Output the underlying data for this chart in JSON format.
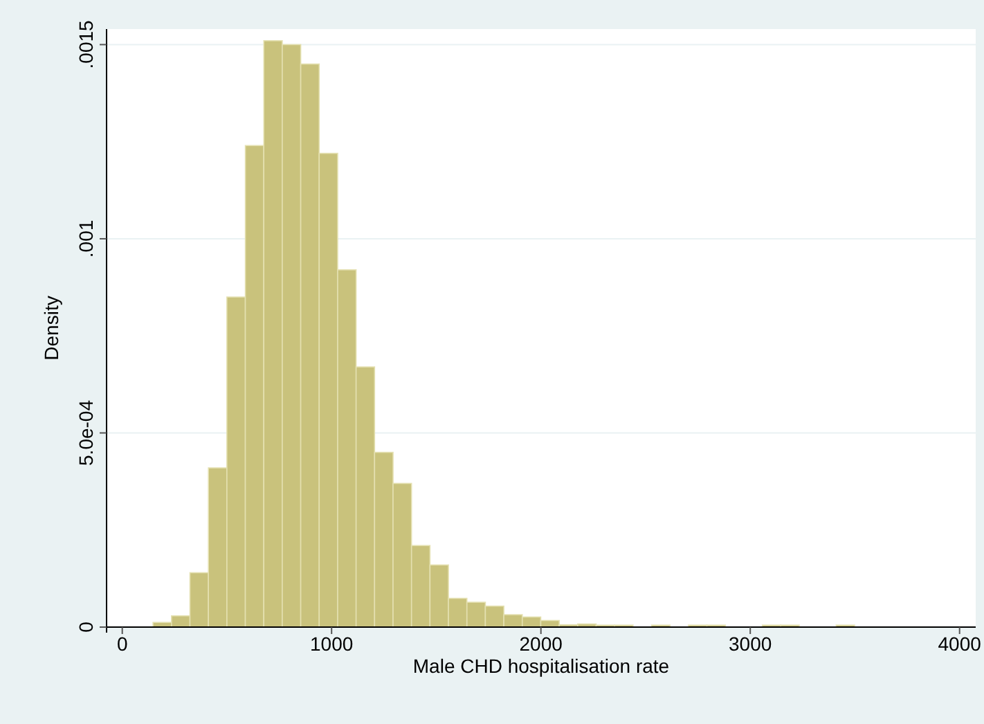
{
  "chart_data": {
    "type": "histogram",
    "xlabel": "Male CHD hospitalisation rate",
    "ylabel": "Density",
    "bins": [
      147,
      235.2,
      323.4,
      411.6,
      499.8,
      588,
      676.2,
      764.4,
      852.6,
      940.8,
      1029,
      1117.2,
      1205.4,
      1293.6,
      1381.8,
      1470,
      1558.2,
      1646.4,
      1734.6,
      1822.8,
      1911,
      1999.2,
      2087.4,
      2175.6,
      2263.8,
      2352,
      2440.2,
      2528.4,
      2616.6,
      2704.8,
      2793,
      2881.2,
      2969.4,
      3057.6,
      3145.8,
      3234,
      3322.2,
      3410.4,
      3498.6
    ],
    "values": [
      1.2e-05,
      2.9e-05,
      0.00014,
      0.00041,
      0.00085,
      0.00124,
      0.00151,
      0.0015,
      0.00145,
      0.00122,
      0.00092,
      0.00067,
      0.00045,
      0.00037,
      0.00021,
      0.00016,
      7.4e-05,
      6.4e-05,
      5.4e-05,
      3.2e-05,
      2.6e-05,
      1.7e-05,
      6e-06,
      8e-06,
      5e-06,
      5e-06,
      0,
      5e-06,
      0,
      5e-06,
      5e-06,
      0,
      0,
      5e-06,
      5e-06,
      0,
      0,
      5e-06
    ],
    "color": "#c9c27c",
    "xlim": [
      -75,
      4077
    ],
    "xticks": [
      0,
      1000,
      2000,
      3000,
      4000
    ],
    "ylim": [
      0,
      0.00154
    ],
    "yticks": [
      {
        "value": 0,
        "label": "0"
      },
      {
        "value": 0.0005,
        "label": "5.0e-04"
      },
      {
        "value": 0.001,
        "label": ".001"
      },
      {
        "value": 0.0015,
        "label": ".0015"
      }
    ],
    "grid": "y"
  }
}
